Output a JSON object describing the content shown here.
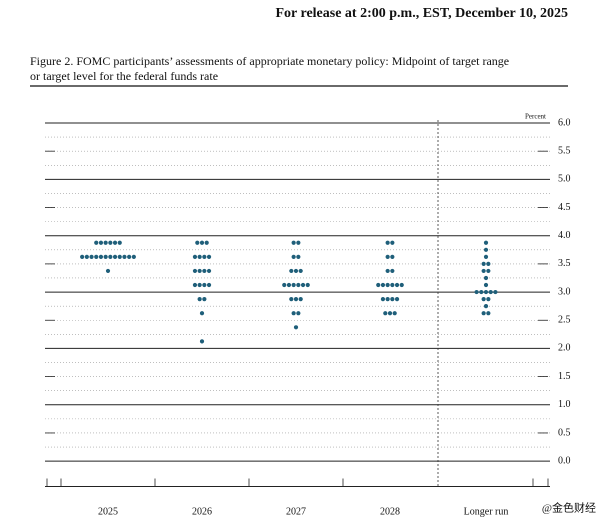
{
  "release": "For release at 2:00 p.m., EST, December 10, 2025",
  "chart_data": {
    "type": "dot",
    "title": "Figure 2. FOMC participants’ assessments of appropriate monetary policy: Midpoint of target range",
    "subtitle": "or target level for the federal funds rate",
    "y_label": "Percent",
    "categories": [
      "2025",
      "2026",
      "2027",
      "2028",
      "Longer run"
    ],
    "dots": [
      [
        3.875,
        3.875,
        3.875,
        3.875,
        3.875,
        3.875,
        3.625,
        3.625,
        3.625,
        3.625,
        3.625,
        3.625,
        3.625,
        3.625,
        3.625,
        3.625,
        3.625,
        3.625,
        3.375
      ],
      [
        3.875,
        3.875,
        3.875,
        3.625,
        3.625,
        3.625,
        3.625,
        3.375,
        3.375,
        3.375,
        3.375,
        3.125,
        3.125,
        3.125,
        3.125,
        2.875,
        2.875,
        2.625,
        2.125
      ],
      [
        3.875,
        3.875,
        3.625,
        3.625,
        3.375,
        3.375,
        3.375,
        3.125,
        3.125,
        3.125,
        3.125,
        3.125,
        3.125,
        2.875,
        2.875,
        2.875,
        2.625,
        2.625,
        2.375
      ],
      [
        3.875,
        3.875,
        3.625,
        3.625,
        3.375,
        3.375,
        3.125,
        3.125,
        3.125,
        3.125,
        3.125,
        3.125,
        2.875,
        2.875,
        2.875,
        2.875,
        2.625,
        2.625,
        2.625
      ],
      [
        3.875,
        3.75,
        3.625,
        3.5,
        3.5,
        3.375,
        3.375,
        3.25,
        3.125,
        3.0,
        3.0,
        3.0,
        3.0,
        3.0,
        2.875,
        2.875,
        2.75,
        2.625,
        2.625
      ]
    ],
    "color": "#1f5f7a",
    "ylim": [
      -0.45,
      6.0
    ],
    "yticks": [
      {
        "value": 6,
        "label": "6.0"
      },
      5.5,
      {
        "value": 5,
        "label": "5.0"
      },
      4.5,
      {
        "value": 4,
        "label": "4.0"
      },
      3.5,
      {
        "value": 3,
        "label": "3.0"
      },
      2.5,
      {
        "value": 2,
        "label": "2.0"
      },
      1.5,
      {
        "value": 1,
        "label": "1.0"
      },
      0.5,
      {
        "value": 0,
        "label": "0.0"
      }
    ],
    "grid": true,
    "watermark": "@金色财经"
  }
}
